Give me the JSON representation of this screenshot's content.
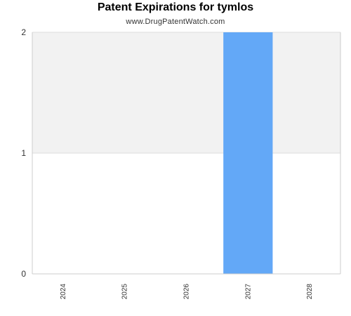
{
  "header": {
    "title": "Patent Expirations for tymlos",
    "subtitle": "www.DrugPatentWatch.com"
  },
  "colors": {
    "bar": "#63a8f7",
    "band": "#f2f2f2",
    "grid": "#dddddd",
    "axis": "#cccccc"
  },
  "chart_data": {
    "type": "bar",
    "title": "Patent Expirations for tymlos",
    "subtitle": "www.DrugPatentWatch.com",
    "categories": [
      "2024",
      "2025",
      "2026",
      "2027",
      "2028"
    ],
    "values": [
      0,
      0,
      0,
      2,
      0
    ],
    "xlabel": "",
    "ylabel": "",
    "ylim": [
      0,
      2
    ],
    "yticks": [
      "0",
      "1",
      "2"
    ],
    "grid": true,
    "legend": "none"
  }
}
